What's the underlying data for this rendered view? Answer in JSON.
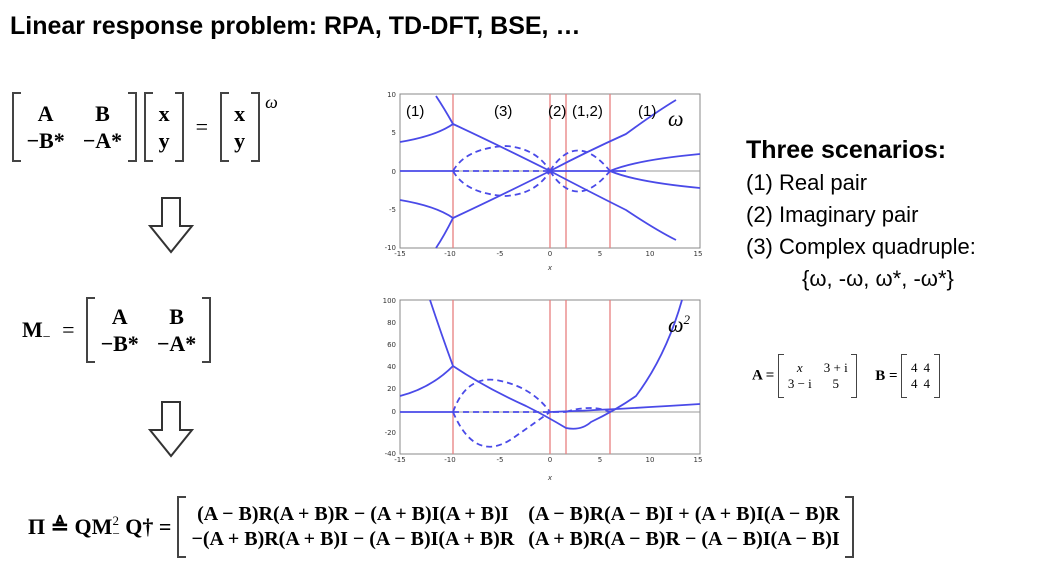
{
  "title": "Linear response problem: RPA, TD-DFT, BSE, …",
  "eq1": {
    "m11": "A",
    "m12": "B",
    "m21": "−B*",
    "m22": "−A*",
    "v1": "x",
    "v2": "y",
    "eq": "=",
    "w1": "x",
    "w2": "y",
    "omega": "ω"
  },
  "eq2": {
    "lhs": "M",
    "sub": "−",
    "eq": "=",
    "m11": "A",
    "m12": "B",
    "m21": "−B*",
    "m22": "−A*"
  },
  "eq3": {
    "lhs": "Π ≜ QM",
    "sup": "2",
    "sub": "−",
    "rest": "Q† =",
    "r1c1": "(A − B)R(A + B)R − (A + B)I(A + B)I",
    "r1c2": "(A − B)R(A − B)I + (A + B)I(A − B)R",
    "r2c1": "−(A + B)R(A + B)I − (A − B)I(A + B)R",
    "r2c2": "(A + B)R(A − B)R − (A − B)I(A − B)I"
  },
  "scenarios": {
    "heading": "Three scenarios:",
    "items": [
      "(1) Real pair",
      "(2) Imaginary pair",
      "(3) Complex quadruple:"
    ],
    "quad": "{ω, -ω, ω*, -ω*}"
  },
  "example": {
    "A_label": "A =",
    "A": [
      [
        "x",
        "3 + i"
      ],
      [
        "3 − i",
        "5"
      ]
    ],
    "B_label": "B =",
    "B": [
      [
        "4",
        "4"
      ],
      [
        "4",
        "4"
      ]
    ]
  },
  "plot1": {
    "region_labels": [
      "(1)",
      "(3)",
      "(2)",
      "(1,2)",
      "(1)"
    ],
    "symbol": "ω",
    "xticks": [
      "-15",
      "-10",
      "-5",
      "0",
      "5",
      "10",
      "15"
    ],
    "yticks": [
      "10",
      "5",
      "0",
      "-5",
      "-10"
    ],
    "xlabel": "x"
  },
  "plot2": {
    "symbol": "ω",
    "symbol_sup": "2",
    "xticks": [
      "-15",
      "-10",
      "-5",
      "0",
      "5",
      "10",
      "15"
    ],
    "yticks": [
      "100",
      "80",
      "60",
      "40",
      "20",
      "0",
      "-20",
      "-40"
    ],
    "xlabel": "x"
  },
  "colors": {
    "curve": "#4a4ae8",
    "vline": "#e88080",
    "axis": "#999999"
  }
}
